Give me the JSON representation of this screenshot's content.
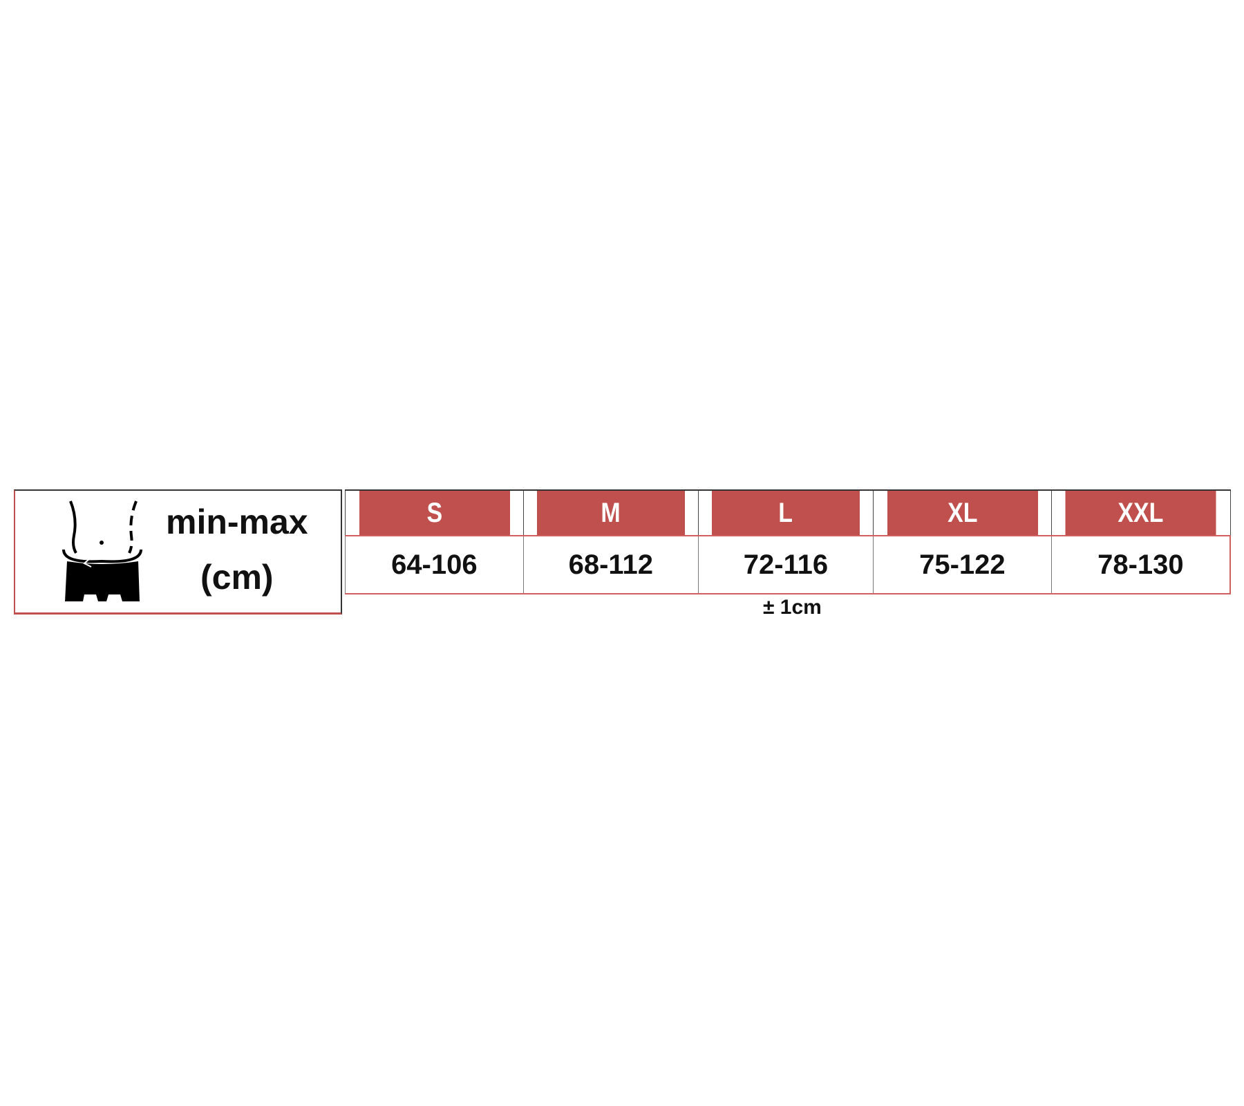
{
  "label": {
    "line1": "min-max",
    "line2": "(cm)",
    "icon": "waist-measure-icon"
  },
  "table": {
    "sizes": [
      "S",
      "M",
      "L",
      "XL",
      "XXL"
    ],
    "ranges": [
      "64-106",
      "68-112",
      "72-116",
      "75-122",
      "78-130"
    ]
  },
  "tolerance": "± 1cm",
  "colors": {
    "header": "#c0504d",
    "border": "#d06060"
  }
}
